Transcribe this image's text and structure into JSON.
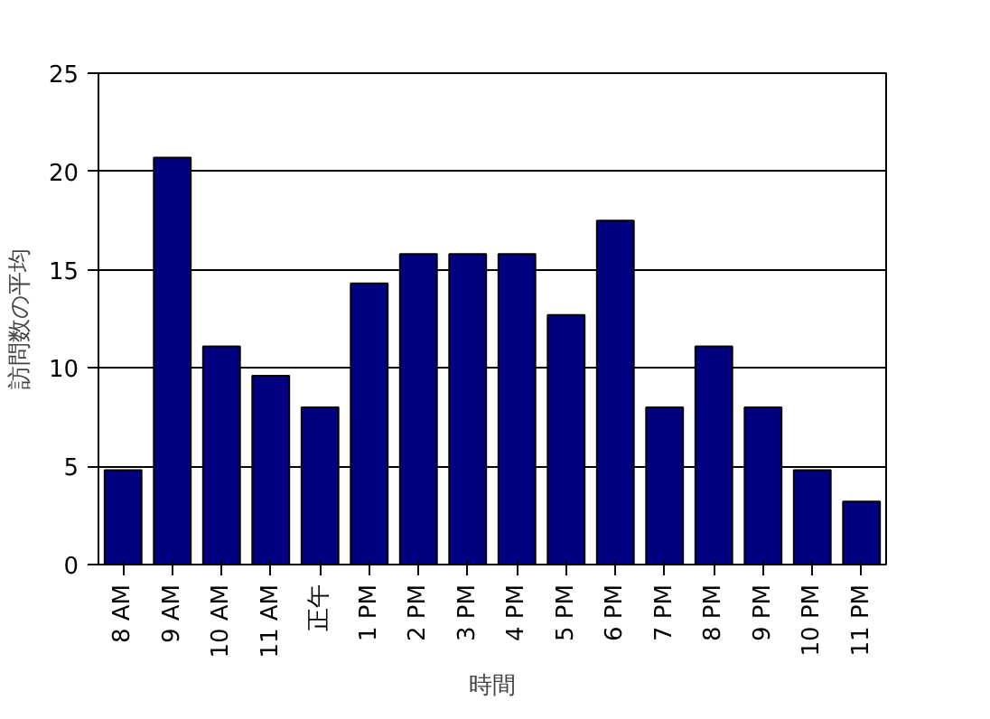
{
  "chart_data": {
    "type": "bar",
    "xlabel": "時間",
    "ylabel": "訪問数の平均",
    "categories": [
      "8 AM",
      "9 AM",
      "10 AM",
      "11 AM",
      "正午",
      "1 PM",
      "2 PM",
      "3 PM",
      "4 PM",
      "5 PM",
      "6 PM",
      "7 PM",
      "8 PM",
      "9 PM",
      "10 PM",
      "11 PM"
    ],
    "values": [
      4.8,
      20.7,
      11.1,
      9.6,
      8.0,
      14.3,
      15.8,
      15.8,
      15.8,
      12.7,
      17.5,
      8.0,
      11.1,
      8.0,
      4.8,
      3.2
    ],
    "color": "#000080",
    "ylim": [
      0,
      25
    ],
    "yticks": [
      0,
      5,
      10,
      15,
      20,
      25
    ],
    "grid": "y"
  }
}
